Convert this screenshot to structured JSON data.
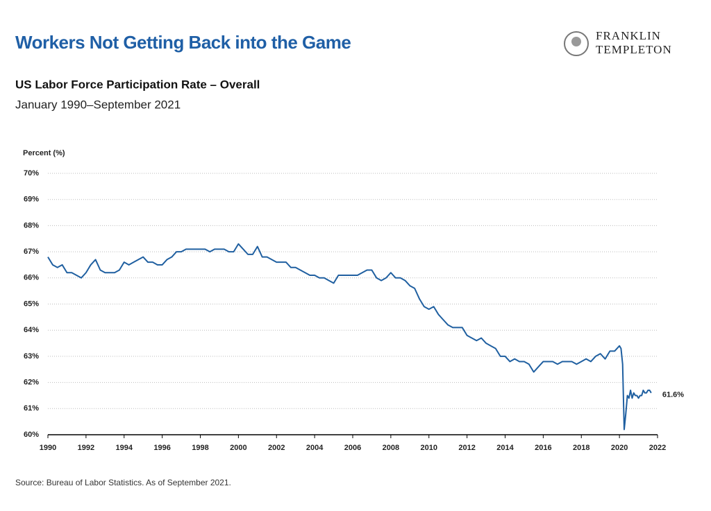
{
  "chart_data": {
    "type": "line",
    "title": "Workers Not Getting Back into the Game",
    "subtitle": "US Labor Force Participation Rate – Overall",
    "date_range": "January 1990–September 2021",
    "y_axis_label": "Percent (%)",
    "source": "Source: Bureau of Labor Statistics. As of September 2021.",
    "brand": [
      "FRANKLIN",
      "TEMPLETON"
    ],
    "x": [
      1990,
      1990.25,
      1990.5,
      1990.75,
      1991,
      1991.25,
      1991.5,
      1991.75,
      1992,
      1992.25,
      1992.5,
      1992.75,
      1993,
      1993.25,
      1993.5,
      1993.75,
      1994,
      1994.25,
      1994.5,
      1994.75,
      1995,
      1995.25,
      1995.5,
      1995.75,
      1996,
      1996.25,
      1996.5,
      1996.75,
      1997,
      1997.25,
      1997.5,
      1997.75,
      1998,
      1998.25,
      1998.5,
      1998.75,
      1999,
      1999.25,
      1999.5,
      1999.75,
      2000,
      2000.25,
      2000.5,
      2000.75,
      2001,
      2001.25,
      2001.5,
      2001.75,
      2002,
      2002.25,
      2002.5,
      2002.75,
      2003,
      2003.25,
      2003.5,
      2003.75,
      2004,
      2004.25,
      2004.5,
      2004.75,
      2005,
      2005.25,
      2005.5,
      2005.75,
      2006,
      2006.25,
      2006.5,
      2006.75,
      2007,
      2007.25,
      2007.5,
      2007.75,
      2008,
      2008.25,
      2008.5,
      2008.75,
      2009,
      2009.25,
      2009.5,
      2009.75,
      2010,
      2010.25,
      2010.5,
      2010.75,
      2011,
      2011.25,
      2011.5,
      2011.75,
      2012,
      2012.25,
      2012.5,
      2012.75,
      2013,
      2013.25,
      2013.5,
      2013.75,
      2014,
      2014.25,
      2014.5,
      2014.75,
      2015,
      2015.25,
      2015.5,
      2015.75,
      2016,
      2016.25,
      2016.5,
      2016.75,
      2017,
      2017.25,
      2017.5,
      2017.75,
      2018,
      2018.25,
      2018.5,
      2018.75,
      2019,
      2019.25,
      2019.5,
      2019.75,
      2020,
      2020.083,
      2020.167,
      2020.25,
      2020.333,
      2020.417,
      2020.5,
      2020.583,
      2020.667,
      2020.75,
      2020.833,
      2020.917,
      2021,
      2021.083,
      2021.167,
      2021.25,
      2021.333,
      2021.417,
      2021.5,
      2021.583,
      2021.667
    ],
    "series": [
      {
        "color": "#1f5fa0",
        "values": [
          66.8,
          66.5,
          66.4,
          66.5,
          66.2,
          66.2,
          66.1,
          66.0,
          66.2,
          66.5,
          66.7,
          66.3,
          66.2,
          66.2,
          66.2,
          66.3,
          66.6,
          66.5,
          66.6,
          66.7,
          66.8,
          66.6,
          66.6,
          66.5,
          66.5,
          66.7,
          66.8,
          67.0,
          67.0,
          67.1,
          67.1,
          67.1,
          67.1,
          67.1,
          67.0,
          67.1,
          67.1,
          67.1,
          67.0,
          67.0,
          67.3,
          67.1,
          66.9,
          66.9,
          67.2,
          66.8,
          66.8,
          66.7,
          66.6,
          66.6,
          66.6,
          66.4,
          66.4,
          66.3,
          66.2,
          66.1,
          66.1,
          66.0,
          66.0,
          65.9,
          65.8,
          66.1,
          66.1,
          66.1,
          66.1,
          66.1,
          66.2,
          66.3,
          66.3,
          66.0,
          65.9,
          66.0,
          66.2,
          66.0,
          66.0,
          65.9,
          65.7,
          65.6,
          65.2,
          64.9,
          64.8,
          64.9,
          64.6,
          64.4,
          64.2,
          64.1,
          64.1,
          64.1,
          63.8,
          63.7,
          63.6,
          63.7,
          63.5,
          63.4,
          63.3,
          63.0,
          63.0,
          62.8,
          62.9,
          62.8,
          62.8,
          62.7,
          62.4,
          62.6,
          62.8,
          62.8,
          62.8,
          62.7,
          62.8,
          62.8,
          62.8,
          62.7,
          62.8,
          62.9,
          62.8,
          63.0,
          63.1,
          62.9,
          63.2,
          63.2,
          63.4,
          63.3,
          62.7,
          60.2,
          60.8,
          61.5,
          61.4,
          61.7,
          61.4,
          61.6,
          61.5,
          61.5,
          61.4,
          61.5,
          61.5,
          61.7,
          61.6,
          61.6,
          61.7,
          61.7,
          61.6
        ],
        "value_labels": [
          null,
          null,
          null,
          null,
          null,
          null,
          null,
          null,
          null,
          null,
          null,
          null,
          null,
          null,
          null,
          null,
          null,
          null,
          null,
          null,
          null,
          null,
          null,
          null,
          null,
          null,
          null,
          null,
          null,
          null,
          null,
          null,
          null,
          null,
          null,
          null,
          null,
          null,
          null,
          null,
          null,
          null,
          null,
          null,
          null,
          null,
          null,
          null,
          null,
          null,
          null,
          null,
          null,
          null,
          null,
          null,
          null,
          null,
          null,
          null,
          null,
          null,
          null,
          null,
          null,
          null,
          null,
          null,
          null,
          null,
          null,
          null,
          null,
          null,
          null,
          null,
          null,
          null,
          null,
          null,
          null,
          null,
          null,
          null,
          null,
          null,
          null,
          null,
          null,
          null,
          null,
          null,
          null,
          null,
          null,
          null,
          null,
          null,
          null,
          null,
          null,
          null,
          null,
          null,
          null,
          null,
          null,
          null,
          null,
          null,
          null,
          null,
          null,
          null,
          null,
          null,
          null,
          null,
          null,
          null,
          null,
          null,
          null,
          null,
          null,
          null,
          null,
          null,
          null,
          null,
          null,
          null,
          null,
          null,
          null,
          null,
          null,
          null,
          null,
          null,
          "61.6%"
        ]
      }
    ],
    "xlim": [
      1990,
      2022
    ],
    "xticks": [
      1990,
      1992,
      1994,
      1996,
      1998,
      2000,
      2002,
      2004,
      2006,
      2008,
      2010,
      2012,
      2014,
      2016,
      2018,
      2020,
      2022
    ],
    "ylim": [
      60,
      70
    ],
    "yticks": [
      {
        "value": 60,
        "label": "60%"
      },
      {
        "value": 61,
        "label": "61%"
      },
      {
        "value": 62,
        "label": "62%"
      },
      {
        "value": 63,
        "label": "63%"
      },
      {
        "value": 64,
        "label": "64%"
      },
      {
        "value": 65,
        "label": "65%"
      },
      {
        "value": 66,
        "label": "66%"
      },
      {
        "value": 67,
        "label": "67%"
      },
      {
        "value": 68,
        "label": "68%"
      },
      {
        "value": 69,
        "label": "69%"
      },
      {
        "value": 70,
        "label": "70%"
      }
    ],
    "grid": true
  }
}
